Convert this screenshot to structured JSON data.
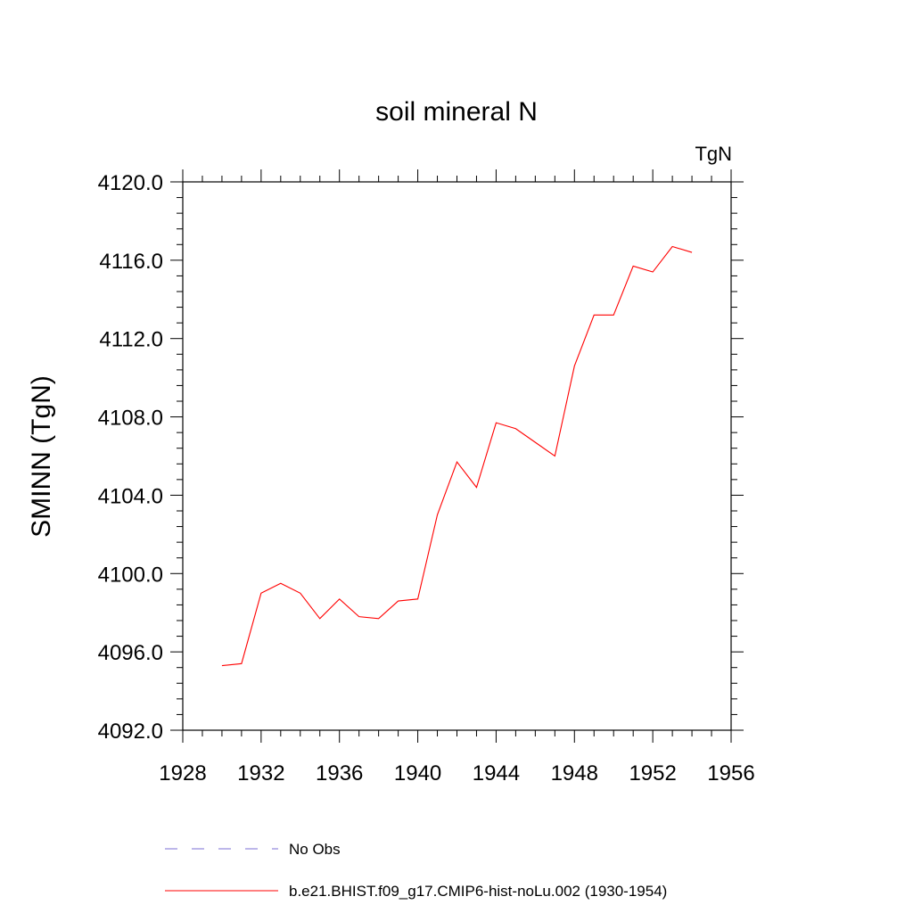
{
  "chart_data": {
    "type": "line",
    "title": "soil mineral N",
    "units": "TgN",
    "xlabel": "",
    "ylabel": "SMINN  (TgN)",
    "xlim": [
      1928,
      1956
    ],
    "ylim": [
      4092.0,
      4120.0
    ],
    "x_ticks": [
      "1928",
      "1932",
      "1936",
      "1940",
      "1944",
      "1948",
      "1952",
      "1956"
    ],
    "y_ticks": [
      "4092.0",
      "4096.0",
      "4100.0",
      "4104.0",
      "4108.0",
      "4112.0",
      "4116.0",
      "4120.0"
    ],
    "grid": false,
    "legend_position": "bottom",
    "series": [
      {
        "name": "b.e21.BHIST.f09_g17.CMIP6-hist-noLu.002 (1930-1954)",
        "color": "#ff0000",
        "style": "solid",
        "x": [
          1930,
          1931,
          1932,
          1933,
          1934,
          1935,
          1936,
          1937,
          1938,
          1939,
          1940,
          1941,
          1942,
          1943,
          1944,
          1945,
          1946,
          1947,
          1948,
          1949,
          1950,
          1951,
          1952,
          1953,
          1954
        ],
        "y": [
          4095.3,
          4095.4,
          4099.0,
          4099.5,
          4099.0,
          4097.7,
          4098.7,
          4097.8,
          4097.7,
          4098.6,
          4098.7,
          4103.0,
          4105.7,
          4104.4,
          4107.7,
          4107.4,
          4106.7,
          4106.0,
          4110.6,
          4113.2,
          4113.2,
          4115.7,
          4115.4,
          4116.7,
          4116.4
        ]
      }
    ],
    "legend": [
      {
        "label": "No Obs",
        "color": "#7b6fd6",
        "style": "dashed"
      },
      {
        "label": "b.e21.BHIST.f09_g17.CMIP6-hist-noLu.002 (1930-1954)",
        "color": "#ff0000",
        "style": "solid"
      }
    ]
  }
}
